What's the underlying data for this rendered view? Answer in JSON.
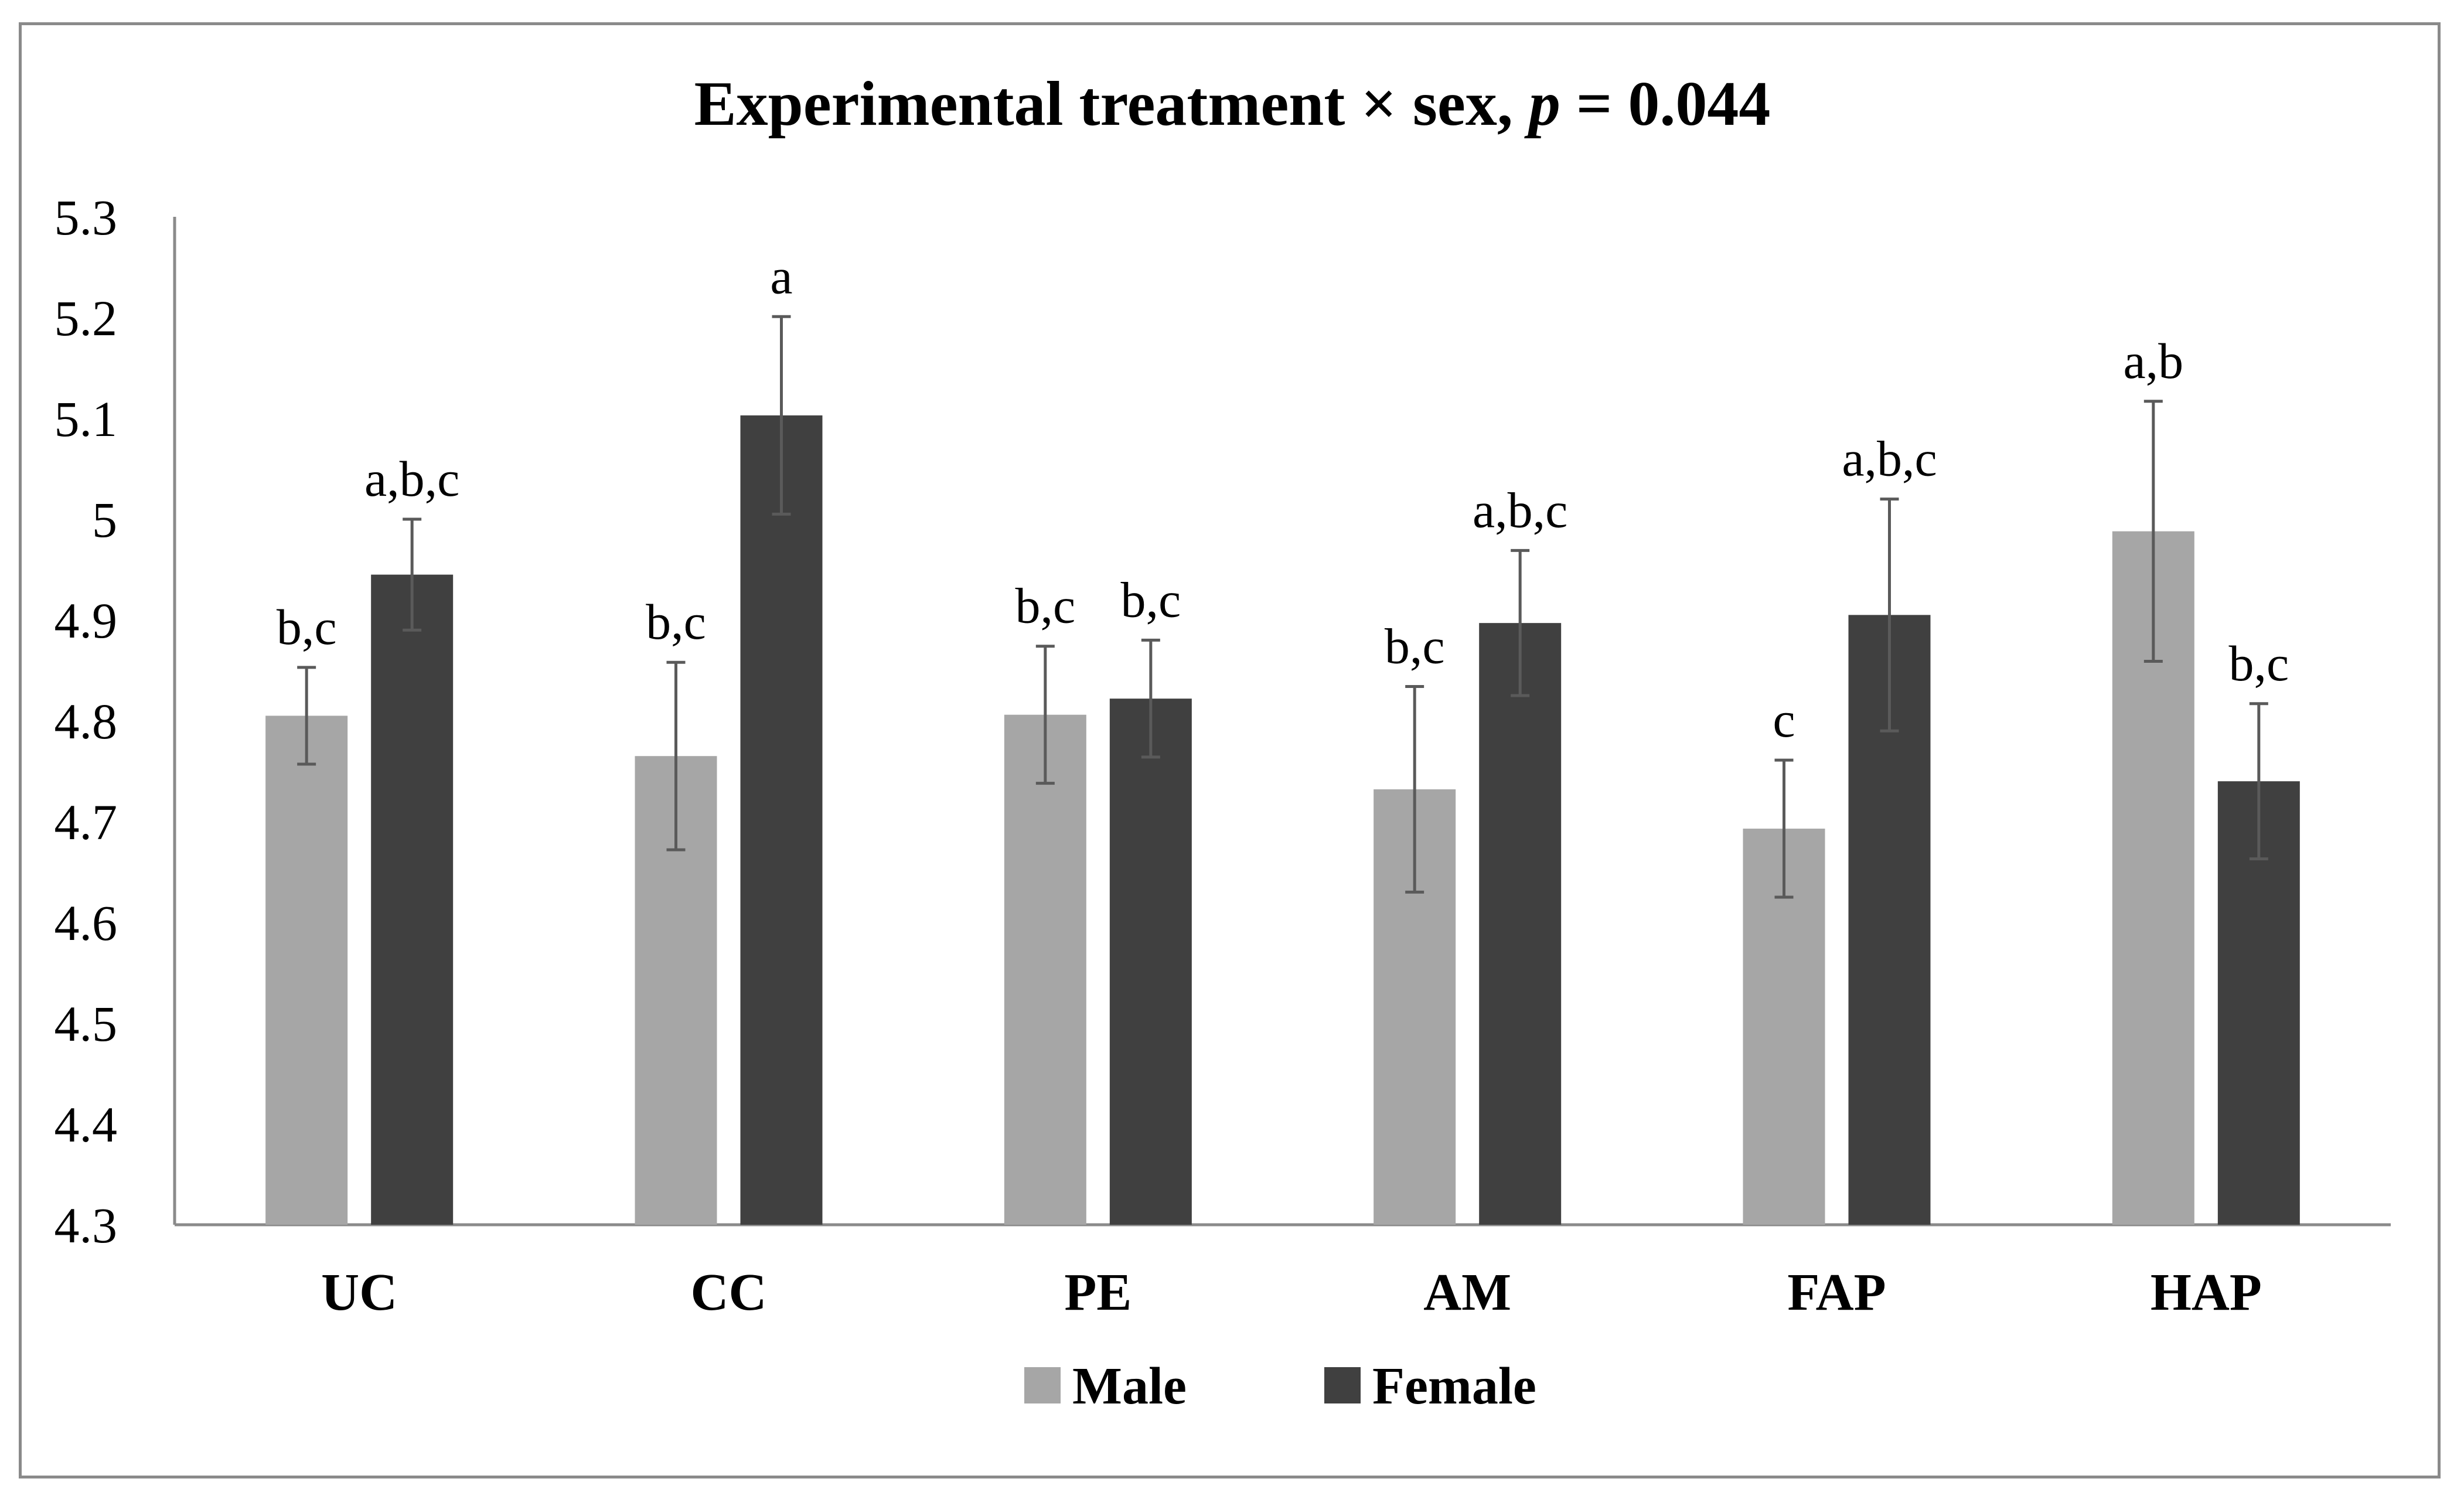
{
  "chart_data": {
    "type": "bar",
    "title": "Experimental treatment × sex, ",
    "title_p": "p",
    "title_value": " = 0.044",
    "xlabel": "",
    "ylabel": "",
    "ylim": [
      4.3,
      5.3
    ],
    "yticks": [
      "4.3",
      "4.4",
      "4.5",
      "4.6",
      "4.7",
      "4.8",
      "4.9",
      "5",
      "5.1",
      "5.2",
      "5.3"
    ],
    "grid": false,
    "legend_position": "bottom",
    "categories": [
      "UC",
      "CC",
      "PE",
      "AM",
      "FAP",
      "HAP"
    ],
    "series": [
      {
        "name": "Male",
        "color": "#a6a6a6",
        "values": [
          4.805,
          4.765,
          4.806,
          4.732,
          4.693,
          4.988
        ],
        "errors": [
          0.048,
          0.093,
          0.068,
          0.102,
          0.068,
          0.129
        ],
        "letters": [
          "b,c",
          "b,c",
          "b,c",
          "b,c",
          "c",
          "a,b"
        ]
      },
      {
        "name": "Female",
        "color": "#404040",
        "values": [
          4.945,
          5.103,
          4.822,
          4.897,
          4.905,
          4.74
        ],
        "errors": [
          0.055,
          0.098,
          0.058,
          0.072,
          0.115,
          0.077
        ],
        "letters": [
          "a,b,c",
          "a",
          "b,c",
          "a,b,c",
          "a,b,c",
          "b,c"
        ]
      }
    ]
  }
}
